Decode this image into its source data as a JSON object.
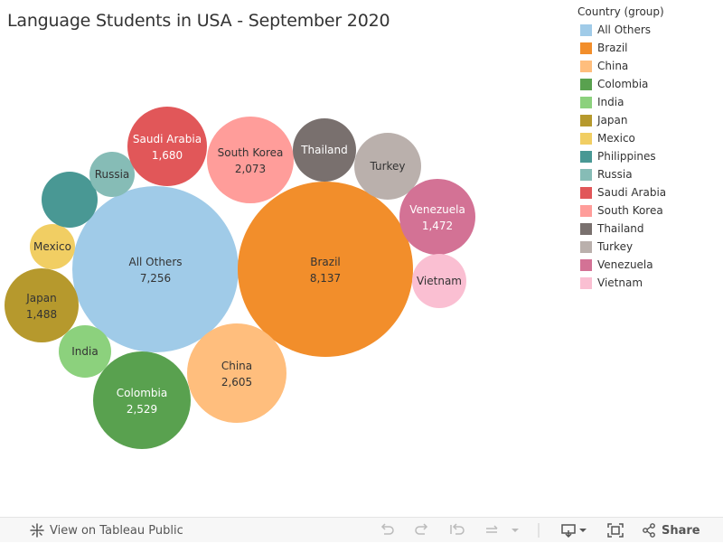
{
  "title": "Language Students in USA - September 2020",
  "legend": {
    "title": "Country (group)",
    "items": [
      {
        "label": "All Others",
        "color": "#A0CBE8"
      },
      {
        "label": "Brazil",
        "color": "#F28E2B"
      },
      {
        "label": "China",
        "color": "#FFBE7D"
      },
      {
        "label": "Colombia",
        "color": "#59A14F"
      },
      {
        "label": "India",
        "color": "#8CD17D"
      },
      {
        "label": "Japan",
        "color": "#B6992D"
      },
      {
        "label": "Mexico",
        "color": "#F1CE63"
      },
      {
        "label": "Philippines",
        "color": "#499894"
      },
      {
        "label": "Russia",
        "color": "#86BCB6"
      },
      {
        "label": "Saudi Arabia",
        "color": "#E15759"
      },
      {
        "label": "South Korea",
        "color": "#FF9D9A"
      },
      {
        "label": "Thailand",
        "color": "#79706E"
      },
      {
        "label": "Turkey",
        "color": "#BAB0AC"
      },
      {
        "label": "Venezuela",
        "color": "#D37295"
      },
      {
        "label": "Vietnam",
        "color": "#FABFD2"
      }
    ]
  },
  "chart_data": {
    "type": "bubble",
    "title": "Language Students in USA - September 2020",
    "series": [
      {
        "name": "All Others",
        "label": "All Others",
        "value_text": "7,256",
        "value": 7256
      },
      {
        "name": "Brazil",
        "label": "Brazil",
        "value_text": "8,137",
        "value": 8137
      },
      {
        "name": "China",
        "label": "China",
        "value_text": "2,605",
        "value": 2605
      },
      {
        "name": "Colombia",
        "label": "Colombia",
        "value_text": "2,529",
        "value": 2529
      },
      {
        "name": "India",
        "label": "India",
        "value_text": "",
        "value": 640
      },
      {
        "name": "Japan",
        "label": "Japan",
        "value_text": "1,488",
        "value": 1488
      },
      {
        "name": "Mexico",
        "label": "Mexico",
        "value_text": "",
        "value": 640
      },
      {
        "name": "Philippines",
        "label": "",
        "value_text": "",
        "value": 780
      },
      {
        "name": "Russia",
        "label": "Russia",
        "value_text": "",
        "value": 500
      },
      {
        "name": "Saudi Arabia",
        "label": "Saudi Arabia",
        "value_text": "1,680",
        "value": 1680
      },
      {
        "name": "South Korea",
        "label": "South Korea",
        "value_text": "2,073",
        "value": 2073
      },
      {
        "name": "Thailand",
        "label": "Thailand",
        "value_text": "",
        "value": 1000
      },
      {
        "name": "Turkey",
        "label": "Turkey",
        "value_text": "",
        "value": 1150
      },
      {
        "name": "Venezuela",
        "label": "Venezuela",
        "value_text": "1,472",
        "value": 1472
      },
      {
        "name": "Vietnam",
        "label": "Vietnam",
        "value_text": "",
        "value": 720
      }
    ]
  },
  "toolbar": {
    "view_label": "View on Tableau Public",
    "share_label": "Share"
  }
}
